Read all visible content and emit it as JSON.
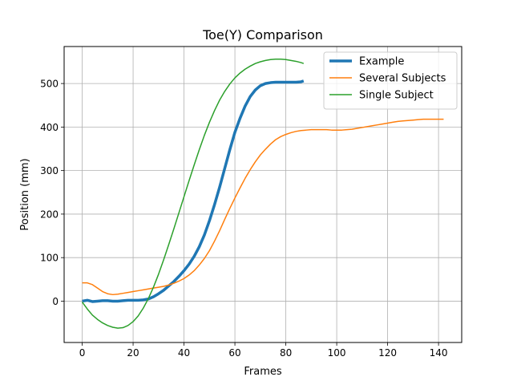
{
  "chart_data": {
    "type": "line",
    "title": "Toe(Y) Comparison",
    "xlabel": "Frames",
    "ylabel": "Position (mm)",
    "xlim": [
      -7.1,
      149.1
    ],
    "ylim": [
      -95,
      585
    ],
    "xticks": [
      0,
      20,
      40,
      60,
      80,
      100,
      120,
      140
    ],
    "yticks": [
      0,
      100,
      200,
      300,
      400,
      500
    ],
    "grid": true,
    "legend": "upper right",
    "series": [
      {
        "name": "Example",
        "color": "#1f77b4",
        "width": 3.5,
        "points": [
          [
            0,
            0
          ],
          [
            2,
            2
          ],
          [
            4,
            -1
          ],
          [
            6,
            0
          ],
          [
            8,
            1
          ],
          [
            10,
            1
          ],
          [
            12,
            0
          ],
          [
            14,
            0
          ],
          [
            16,
            1
          ],
          [
            18,
            2
          ],
          [
            20,
            2
          ],
          [
            22,
            2
          ],
          [
            24,
            3
          ],
          [
            26,
            5
          ],
          [
            28,
            10
          ],
          [
            30,
            17
          ],
          [
            32,
            25
          ],
          [
            34,
            35
          ],
          [
            36,
            45
          ],
          [
            38,
            57
          ],
          [
            40,
            70
          ],
          [
            42,
            85
          ],
          [
            44,
            103
          ],
          [
            46,
            125
          ],
          [
            48,
            152
          ],
          [
            50,
            185
          ],
          [
            52,
            222
          ],
          [
            54,
            262
          ],
          [
            56,
            305
          ],
          [
            58,
            348
          ],
          [
            60,
            388
          ],
          [
            62,
            420
          ],
          [
            64,
            448
          ],
          [
            66,
            470
          ],
          [
            68,
            485
          ],
          [
            70,
            495
          ],
          [
            72,
            500
          ],
          [
            74,
            502
          ],
          [
            76,
            503
          ],
          [
            78,
            503
          ],
          [
            80,
            503
          ],
          [
            82,
            503
          ],
          [
            84,
            503
          ],
          [
            86,
            504
          ],
          [
            87,
            506
          ]
        ]
      },
      {
        "name": "Several Subjects",
        "color": "#ff7f0e",
        "width": 1.5,
        "points": [
          [
            0,
            42
          ],
          [
            2,
            42
          ],
          [
            4,
            38
          ],
          [
            6,
            30
          ],
          [
            8,
            22
          ],
          [
            10,
            17
          ],
          [
            12,
            15
          ],
          [
            14,
            16
          ],
          [
            16,
            18
          ],
          [
            18,
            20
          ],
          [
            20,
            22
          ],
          [
            22,
            24
          ],
          [
            24,
            26
          ],
          [
            26,
            28
          ],
          [
            28,
            30
          ],
          [
            30,
            32
          ],
          [
            32,
            34
          ],
          [
            34,
            37
          ],
          [
            36,
            41
          ],
          [
            38,
            46
          ],
          [
            40,
            52
          ],
          [
            42,
            60
          ],
          [
            44,
            70
          ],
          [
            46,
            83
          ],
          [
            48,
            98
          ],
          [
            50,
            116
          ],
          [
            52,
            138
          ],
          [
            54,
            162
          ],
          [
            56,
            188
          ],
          [
            58,
            213
          ],
          [
            60,
            237
          ],
          [
            62,
            260
          ],
          [
            64,
            282
          ],
          [
            66,
            302
          ],
          [
            68,
            320
          ],
          [
            70,
            336
          ],
          [
            72,
            349
          ],
          [
            74,
            361
          ],
          [
            76,
            371
          ],
          [
            78,
            378
          ],
          [
            80,
            383
          ],
          [
            82,
            387
          ],
          [
            84,
            390
          ],
          [
            86,
            392
          ],
          [
            88,
            393
          ],
          [
            90,
            394
          ],
          [
            92,
            394
          ],
          [
            94,
            394
          ],
          [
            96,
            394
          ],
          [
            98,
            393
          ],
          [
            100,
            393
          ],
          [
            102,
            393
          ],
          [
            104,
            394
          ],
          [
            106,
            395
          ],
          [
            108,
            397
          ],
          [
            110,
            399
          ],
          [
            112,
            401
          ],
          [
            114,
            403
          ],
          [
            116,
            405
          ],
          [
            118,
            407
          ],
          [
            120,
            409
          ],
          [
            122,
            411
          ],
          [
            124,
            413
          ],
          [
            126,
            414
          ],
          [
            128,
            415
          ],
          [
            130,
            416
          ],
          [
            132,
            417
          ],
          [
            134,
            418
          ],
          [
            136,
            418
          ],
          [
            138,
            418
          ],
          [
            140,
            418
          ],
          [
            142,
            418
          ]
        ]
      },
      {
        "name": "Single Subject",
        "color": "#2ca02c",
        "width": 1.5,
        "points": [
          [
            0,
            -2
          ],
          [
            2,
            -18
          ],
          [
            4,
            -32
          ],
          [
            6,
            -42
          ],
          [
            8,
            -50
          ],
          [
            10,
            -56
          ],
          [
            12,
            -60
          ],
          [
            14,
            -62
          ],
          [
            16,
            -61
          ],
          [
            18,
            -56
          ],
          [
            20,
            -47
          ],
          [
            22,
            -34
          ],
          [
            24,
            -16
          ],
          [
            26,
            6
          ],
          [
            28,
            32
          ],
          [
            30,
            62
          ],
          [
            32,
            95
          ],
          [
            34,
            130
          ],
          [
            36,
            166
          ],
          [
            38,
            203
          ],
          [
            40,
            240
          ],
          [
            42,
            277
          ],
          [
            44,
            313
          ],
          [
            46,
            348
          ],
          [
            48,
            381
          ],
          [
            50,
            411
          ],
          [
            52,
            438
          ],
          [
            54,
            462
          ],
          [
            56,
            482
          ],
          [
            58,
            499
          ],
          [
            60,
            513
          ],
          [
            62,
            524
          ],
          [
            64,
            533
          ],
          [
            66,
            540
          ],
          [
            68,
            546
          ],
          [
            70,
            550
          ],
          [
            72,
            553
          ],
          [
            74,
            555
          ],
          [
            76,
            556
          ],
          [
            78,
            556
          ],
          [
            80,
            555
          ],
          [
            82,
            553
          ],
          [
            84,
            551
          ],
          [
            86,
            548
          ],
          [
            87,
            546
          ]
        ]
      }
    ]
  }
}
